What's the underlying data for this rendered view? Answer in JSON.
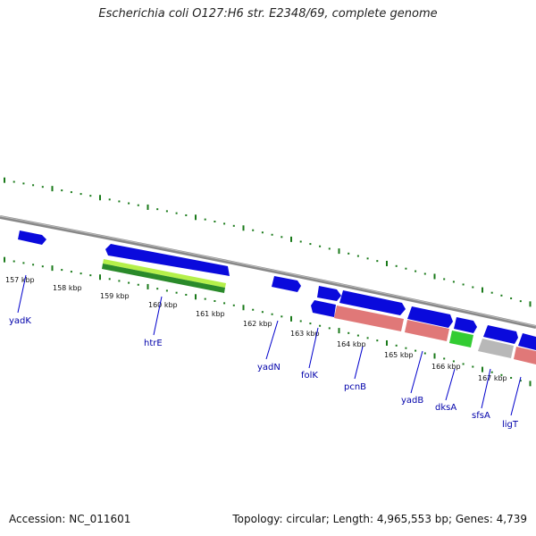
{
  "title": "Escherichia coli O127:H6 str. E2348/69, complete genome",
  "footer": {
    "accession": "Accession: NC_011601",
    "summary": "Topology: circular; Length: 4,965,553 bp; Genes: 4,739"
  },
  "colors": {
    "backbone": "#888888",
    "tick": "#1a7a1a",
    "gene_blue": "#0a0adc",
    "gene_salmon": "#e07878",
    "gene_green": "#33cc33",
    "gene_gray": "#b8b8b8",
    "gene_lime": "#b5f04a",
    "gene_darkgreen": "#2a8a2a",
    "label": "#0000aa"
  },
  "kbp_labels": [
    "157 kbp",
    "158 kbp",
    "159 kbp",
    "160 kbp",
    "161 kbp",
    "162 kbp",
    "163 kbp",
    "164 kbp",
    "165 kbp",
    "166 kbp",
    "167 kbp"
  ],
  "gene_labels": [
    "yadK",
    "htrE",
    "yadN",
    "folK",
    "pcnB",
    "yadB",
    "dksA",
    "sfsA",
    "ligT"
  ]
}
